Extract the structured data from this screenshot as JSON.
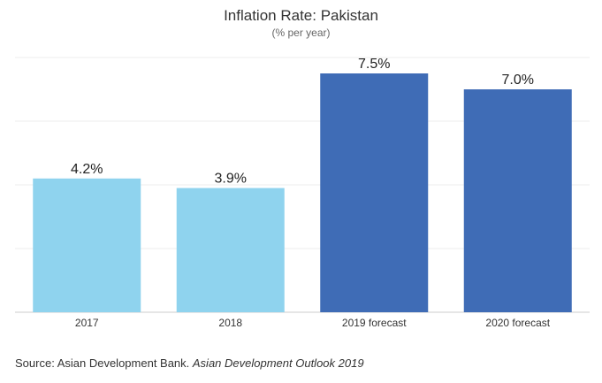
{
  "chart_data": {
    "type": "bar",
    "title": "Inflation Rate: Pakistan",
    "subtitle": "(% per year)",
    "categories": [
      "2017",
      "2018",
      "2019 forecast",
      "2020 forecast"
    ],
    "values": [
      4.2,
      3.9,
      7.5,
      7.0
    ],
    "value_labels": [
      "4.2%",
      "3.9%",
      "7.5%",
      "7.0%"
    ],
    "bar_colors": [
      "#8fd3ee",
      "#8fd3ee",
      "#3f6cb6",
      "#3f6cb6"
    ],
    "ylim": [
      0,
      8
    ],
    "y_gridlines": [
      0,
      2,
      4,
      6,
      8
    ],
    "grid": true,
    "xlabel": "",
    "ylabel": ""
  },
  "source": {
    "prefix": "Source: Asian Development Bank. ",
    "publication": "Asian Development Outlook 2019"
  }
}
